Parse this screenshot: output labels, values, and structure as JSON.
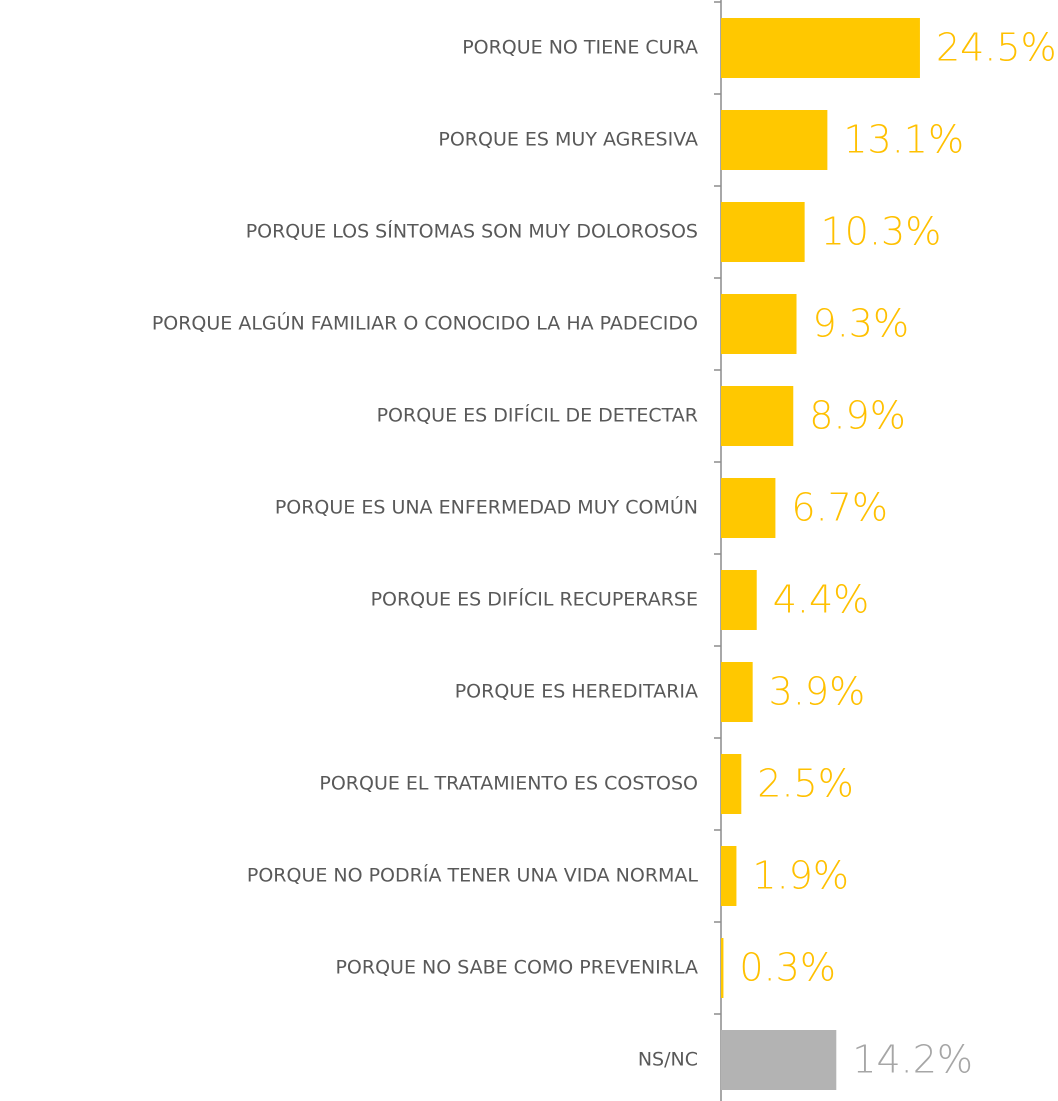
{
  "chart_data": {
    "type": "hbar",
    "categories": [
      "PORQUE NO TIENE CURA",
      "PORQUE ES MUY AGRESIVA",
      "PORQUE LOS SÍNTOMAS SON MUY DOLOROSOS",
      "PORQUE ALGÚN FAMILIAR O CONOCIDO LA HA PADECIDO",
      "PORQUE ES DIFÍCIL DE DETECTAR",
      "PORQUE ES UNA ENFERMEDAD MUY COMÚN",
      "PORQUE ES DIFÍCIL RECUPERARSE",
      "PORQUE ES HEREDITARIA",
      "PORQUE EL TRATAMIENTO ES COSTOSO",
      "PORQUE NO PODRÍA TENER UNA VIDA NORMAL",
      "PORQUE NO SABE COMO PREVENIRLA",
      "NS/NC"
    ],
    "values": [
      24.5,
      13.1,
      10.3,
      9.3,
      8.9,
      6.7,
      4.4,
      3.9,
      2.5,
      1.9,
      0.3,
      14.2
    ],
    "value_labels": [
      "24.5%",
      "13.1%",
      "10.3%",
      "9.3%",
      "8.9%",
      "6.7%",
      "4.4%",
      "3.9%",
      "2.5%",
      "1.9%",
      "0.3%",
      "14.2%"
    ],
    "colors": [
      "#ffc800",
      "#ffc800",
      "#ffc800",
      "#ffc800",
      "#ffc800",
      "#ffc800",
      "#ffc800",
      "#ffc800",
      "#ffc800",
      "#ffc800",
      "#ffc800",
      "#b3b3b3"
    ],
    "label_colors": [
      "#ffc000",
      "#ffc000",
      "#ffc000",
      "#ffc000",
      "#ffc000",
      "#ffc000",
      "#ffc000",
      "#ffc000",
      "#ffc000",
      "#ffc000",
      "#ffc000",
      "#a6a6a6"
    ]
  }
}
